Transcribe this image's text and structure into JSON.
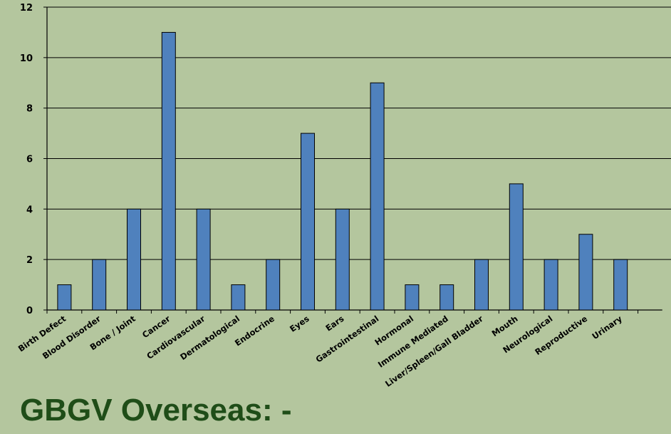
{
  "chart_data": {
    "type": "bar",
    "categories": [
      "Birth Defect",
      "Blood Disorder",
      "Bone / Joint",
      "Cancer",
      "Cardiovascular",
      "Dermatological",
      "Endocrine",
      "Eyes",
      "Ears",
      "Gastrointestinal",
      "Hormonal",
      "Immune Mediated",
      "Liver/Spleen/Gall Bladder",
      "Mouth",
      "Neurological",
      "Reproductive",
      "Urinary"
    ],
    "values": [
      1,
      2,
      4,
      11,
      4,
      1,
      2,
      7,
      4,
      9,
      1,
      1,
      2,
      5,
      2,
      3,
      2
    ],
    "ylim": [
      0,
      12
    ],
    "yticks": [
      0,
      2,
      4,
      6,
      8,
      10,
      12
    ],
    "grid": true,
    "legend": "none",
    "bar_color": "#4f81bd",
    "background_color": "#b4c69e"
  },
  "caption": "GBGV Overseas: -"
}
